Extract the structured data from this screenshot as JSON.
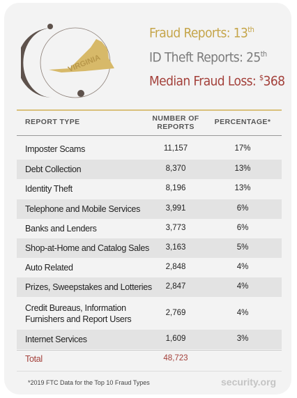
{
  "header": {
    "state": "VIRGINIA",
    "fraud_reports": {
      "label": "Fraud Reports:",
      "value": "13",
      "suffix": "th"
    },
    "id_theft_reports": {
      "label": "ID Theft Reports:",
      "value": "25",
      "suffix": "th"
    },
    "median_fraud_loss": {
      "label": "Median Fraud Loss:",
      "prefix": "$",
      "value": "368"
    }
  },
  "table": {
    "columns": [
      "REPORT TYPE",
      "NUMBER OF REPORTS",
      "PERCENTAGE*"
    ],
    "rows": [
      [
        "Imposter Scams",
        "11,157",
        "17%"
      ],
      [
        "Debt Collection",
        "8,370",
        "13%"
      ],
      [
        "Identity Theft",
        "8,196",
        "13%"
      ],
      [
        "Telephone and Mobile Services",
        "3,991",
        "6%"
      ],
      [
        "Banks and Lenders",
        "3,773",
        "6%"
      ],
      [
        "Shop-at-Home and Catalog Sales",
        "3,163",
        "5%"
      ],
      [
        "Auto Related",
        "2,848",
        "4%"
      ],
      [
        "Prizes, Sweepstakes and Lotteries",
        "2,847",
        "4%"
      ],
      [
        "Credit Bureaus, Information Furnishers and Report Users",
        "2,769",
        "4%"
      ],
      [
        "Internet Services",
        "1,609",
        "3%"
      ]
    ],
    "total": [
      "Total",
      "48,723"
    ]
  },
  "footer": {
    "note": "*2019 FTC Data for the Top 10 Fraud Types",
    "brand": "security.org"
  }
}
